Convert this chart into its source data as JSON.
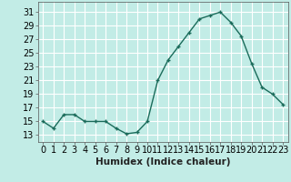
{
  "xlabel": "Humidex (Indice chaleur)",
  "x": [
    0,
    1,
    2,
    3,
    4,
    5,
    6,
    7,
    8,
    9,
    10,
    11,
    12,
    13,
    14,
    15,
    16,
    17,
    18,
    19,
    20,
    21,
    22,
    23
  ],
  "y": [
    15.0,
    14.0,
    16.0,
    16.0,
    15.0,
    15.0,
    15.0,
    14.0,
    13.2,
    13.4,
    15.0,
    21.0,
    24.0,
    26.0,
    28.0,
    30.0,
    30.5,
    31.0,
    29.5,
    27.5,
    23.5,
    20.0,
    19.0,
    17.5
  ],
  "ylim": [
    12.0,
    32.5
  ],
  "yticks": [
    13,
    15,
    17,
    19,
    21,
    23,
    25,
    27,
    29,
    31
  ],
  "xlim": [
    -0.5,
    23.5
  ],
  "xticks": [
    0,
    1,
    2,
    3,
    4,
    5,
    6,
    7,
    8,
    9,
    10,
    11,
    12,
    13,
    14,
    15,
    16,
    17,
    18,
    19,
    20,
    21,
    22,
    23
  ],
  "line_color": "#1a6b5a",
  "marker": "+",
  "bg_color": "#c2ece6",
  "grid_color": "#e8e8e8",
  "axis_color": "#888888",
  "tick_fontsize": 7,
  "xlabel_fontsize": 7.5
}
